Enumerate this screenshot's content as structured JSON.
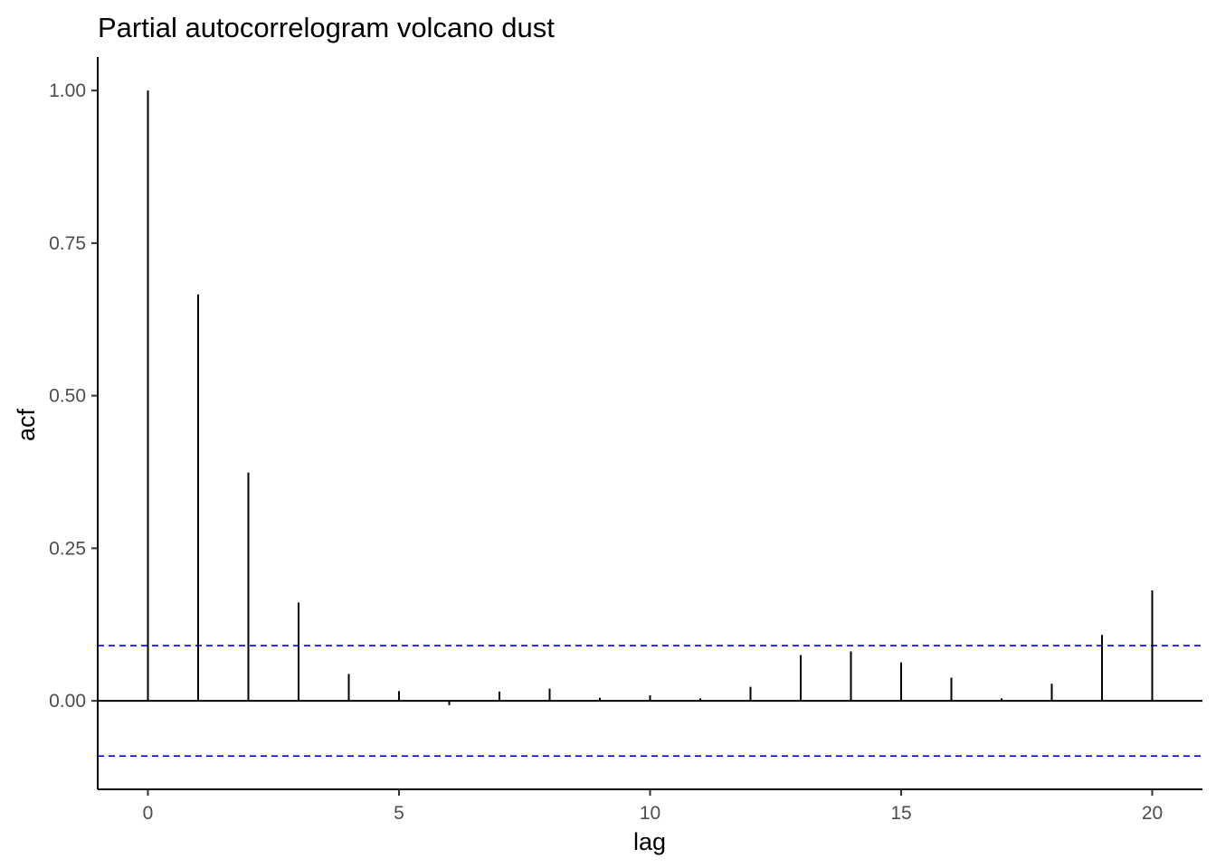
{
  "chart_data": {
    "type": "bar",
    "title": "Partial autocorrelogram volcano dust",
    "xlabel": "lag",
    "ylabel": "acf",
    "x": [
      0,
      1,
      2,
      3,
      4,
      5,
      6,
      7,
      8,
      9,
      10,
      11,
      12,
      13,
      14,
      15,
      16,
      17,
      18,
      19,
      20
    ],
    "values": [
      1.0,
      0.666,
      0.374,
      0.161,
      0.044,
      0.016,
      -0.007,
      0.015,
      0.02,
      0.005,
      0.009,
      0.004,
      0.023,
      0.075,
      0.081,
      0.063,
      0.038,
      0.004,
      0.028,
      0.108,
      0.181
    ],
    "confidence_bound": 0.0904,
    "xlim": [
      -1,
      21
    ],
    "ylim": [
      -0.145,
      1.055
    ],
    "x_ticks": [
      0,
      5,
      10,
      15,
      20
    ],
    "y_ticks": [
      0.0,
      0.25,
      0.5,
      0.75,
      1.0
    ],
    "x_tick_labels": [
      "0",
      "5",
      "10",
      "15",
      "20"
    ],
    "y_tick_labels": [
      "0.00",
      "0.25",
      "0.50",
      "0.75",
      "1.00"
    ],
    "grid": false,
    "colors": {
      "bars": "#000000",
      "zero_line": "#000000",
      "confidence_lines": "#0000ff",
      "axis": "#000000",
      "tick_labels": "#4d4d4d"
    }
  }
}
